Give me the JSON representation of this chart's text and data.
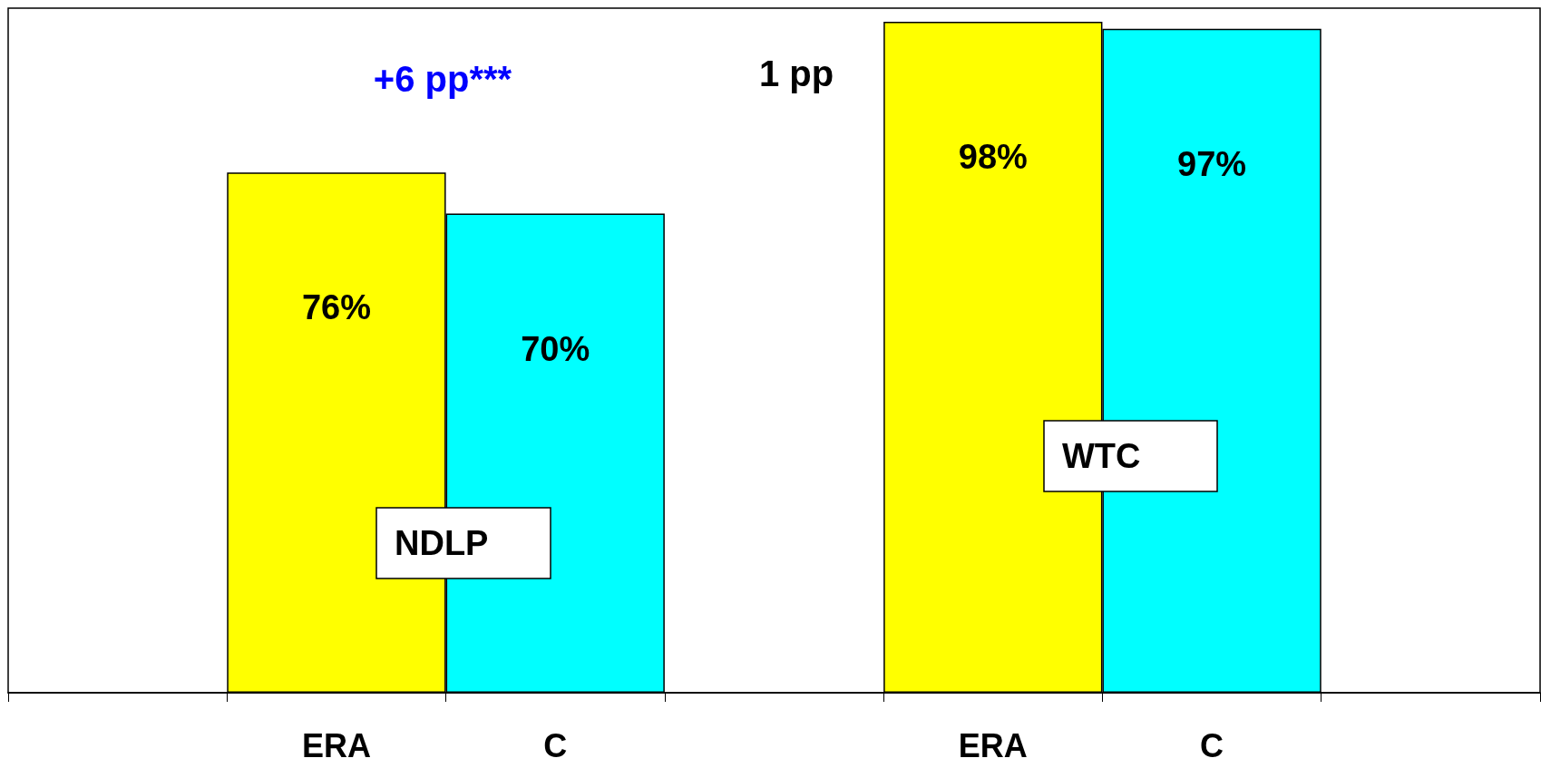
{
  "chart_data": {
    "type": "bar",
    "categories": [
      null,
      "ERA",
      "C",
      null,
      "ERA",
      "C",
      null
    ],
    "values": [
      null,
      76,
      70,
      null,
      98,
      97,
      null
    ],
    "colors": [
      null,
      "#ffff00",
      "#00ffff",
      null,
      "#ffff00",
      "#00ffff",
      null
    ],
    "value_labels": [
      null,
      "76%",
      "70%",
      null,
      "98%",
      "97%",
      null
    ],
    "ylim": [
      0,
      100
    ],
    "tick_labels": "x",
    "annotations": [
      "+6 pp***",
      "1 pp",
      "NDLP",
      "WTC"
    ]
  }
}
